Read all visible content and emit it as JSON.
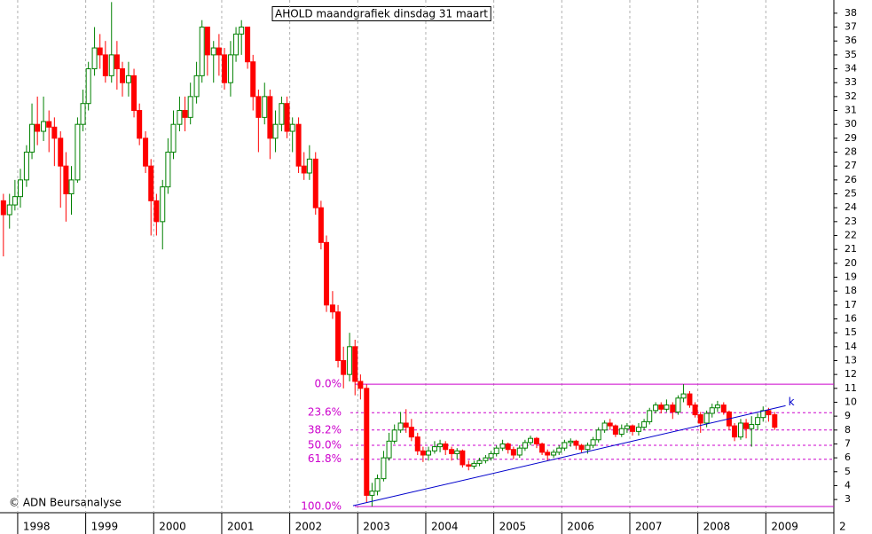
{
  "chart_data": {
    "type": "candlestick",
    "title": "AHOLD maandgrafiek dinsdag 31 maart",
    "copyright": "© ADN Beursanalyse",
    "up_color": "#008000",
    "down_color": "#ff0000",
    "grid": true,
    "xlim": [
      1997.74,
      2010
    ],
    "ylim": [
      2.05,
      38.95
    ],
    "xticks": [
      1998,
      1999,
      2000,
      2001,
      2002,
      2003,
      2004,
      2005,
      2006,
      2007,
      2008,
      2009,
      {
        "value": 2010,
        "label": "2"
      }
    ],
    "yticks": [
      3,
      4,
      5,
      6,
      7,
      8,
      9,
      10,
      11,
      12,
      13,
      14,
      15,
      16,
      17,
      18,
      19,
      20,
      21,
      22,
      23,
      24,
      25,
      26,
      27,
      28,
      29,
      30,
      31,
      32,
      33,
      34,
      35,
      36,
      37,
      38
    ],
    "x": [
      1997.79,
      1997.88,
      1997.96,
      1998.04,
      1998.13,
      1998.21,
      1998.29,
      1998.38,
      1998.46,
      1998.54,
      1998.63,
      1998.71,
      1998.79,
      1998.88,
      1998.96,
      1999.04,
      1999.13,
      1999.21,
      1999.29,
      1999.38,
      1999.46,
      1999.54,
      1999.63,
      1999.71,
      1999.79,
      1999.88,
      1999.96,
      2000.04,
      2000.13,
      2000.21,
      2000.29,
      2000.38,
      2000.46,
      2000.54,
      2000.63,
      2000.71,
      2000.79,
      2000.88,
      2000.96,
      2001.04,
      2001.13,
      2001.21,
      2001.29,
      2001.38,
      2001.46,
      2001.54,
      2001.63,
      2001.71,
      2001.79,
      2001.88,
      2001.96,
      2002.04,
      2002.13,
      2002.21,
      2002.29,
      2002.38,
      2002.46,
      2002.54,
      2002.63,
      2002.71,
      2002.79,
      2002.88,
      2002.96,
      2003.04,
      2003.13,
      2003.21,
      2003.29,
      2003.38,
      2003.46,
      2003.54,
      2003.63,
      2003.71,
      2003.79,
      2003.88,
      2003.96,
      2004.04,
      2004.13,
      2004.21,
      2004.29,
      2004.38,
      2004.46,
      2004.54,
      2004.63,
      2004.71,
      2004.79,
      2004.88,
      2004.96,
      2005.04,
      2005.13,
      2005.21,
      2005.29,
      2005.38,
      2005.46,
      2005.54,
      2005.63,
      2005.71,
      2005.79,
      2005.88,
      2005.96,
      2006.04,
      2006.13,
      2006.21,
      2006.29,
      2006.38,
      2006.46,
      2006.54,
      2006.63,
      2006.71,
      2006.79,
      2006.88,
      2006.96,
      2007.04,
      2007.13,
      2007.21,
      2007.29,
      2007.38,
      2007.46,
      2007.54,
      2007.63,
      2007.71,
      2007.79,
      2007.88,
      2007.96,
      2008.04,
      2008.13,
      2008.21,
      2008.29,
      2008.38,
      2008.46,
      2008.54,
      2008.63,
      2008.71,
      2008.79,
      2008.88,
      2008.96,
      2009.04,
      2009.13
    ],
    "open": [
      24.5,
      23.5,
      24.2,
      24.8,
      26,
      28,
      30,
      29.5,
      30.2,
      29.8,
      29,
      27,
      25,
      26,
      30,
      31.5,
      34,
      35.5,
      35,
      33.5,
      35,
      34,
      33,
      33.5,
      31,
      29,
      27,
      24.5,
      23,
      25.5,
      28,
      30,
      31,
      30.5,
      32,
      33.5,
      37,
      35,
      35.5,
      35,
      33,
      35,
      36.5,
      37,
      34.5,
      32,
      30.5,
      32,
      29,
      30,
      31.5,
      29.5,
      30,
      27,
      26.5,
      27.5,
      24,
      21.5,
      17,
      16.5,
      13,
      12,
      14,
      11.5,
      11,
      3.3,
      3.6,
      4.5,
      6,
      7.2,
      8,
      8.5,
      8.2,
      7.5,
      6.5,
      6.2,
      6.5,
      6.8,
      7,
      6.6,
      6.3,
      6.5,
      5.5,
      5.4,
      5.6,
      5.8,
      6,
      6.3,
      6.7,
      7,
      6.6,
      6.2,
      6.7,
      7.1,
      7.4,
      7,
      6.4,
      6.2,
      6.4,
      6.7,
      7.1,
      7.2,
      6.9,
      6.6,
      6.9,
      7.3,
      8,
      8.5,
      8.3,
      7.7,
      8.1,
      8.3,
      7.9,
      8.2,
      8.6,
      9.4,
      9.8,
      9.5,
      9.8,
      9.3,
      10.3,
      10.6,
      9.8,
      9.1,
      8.5,
      9.2,
      9.6,
      9.8,
      9.3,
      8.3,
      7.5,
      8.5,
      8.1,
      8.4,
      8.9,
      9.4,
      9.1
    ],
    "high": [
      25,
      25,
      26,
      26.8,
      28.5,
      31.5,
      32,
      32,
      31,
      30.5,
      29.5,
      28,
      27,
      30.5,
      32.5,
      34.5,
      37,
      36.5,
      36,
      38.8,
      36,
      34.5,
      34.5,
      34,
      31.5,
      29.5,
      27.5,
      25,
      26,
      29,
      31,
      32,
      32,
      33,
      34.5,
      37.5,
      37,
      36,
      36.5,
      35.5,
      36,
      37,
      37.5,
      37,
      35,
      32.5,
      33,
      32.5,
      31,
      32,
      32,
      30.5,
      30.5,
      28,
      28.5,
      28,
      24.5,
      22,
      18,
      17,
      14,
      15,
      14.5,
      12,
      11.3,
      4.2,
      4.8,
      6.5,
      7.8,
      8.4,
      9.3,
      9.5,
      8.8,
      7.8,
      6.8,
      6.8,
      7.2,
      7.3,
      7.2,
      6.8,
      6.7,
      6.6,
      5.8,
      5.8,
      6,
      6.2,
      6.5,
      6.9,
      7.3,
      7.1,
      6.8,
      6.9,
      7.3,
      7.6,
      7.5,
      7.1,
      6.6,
      6.6,
      6.9,
      7.3,
      7.4,
      7.3,
      7,
      7.1,
      7.5,
      8.2,
      8.7,
      8.8,
      8.4,
      8.4,
      8.5,
      8.4,
      8.5,
      8.8,
      9.6,
      10,
      10,
      10.2,
      10,
      10.5,
      11.3,
      10.8,
      10,
      9.3,
      9.4,
      9.9,
      10.1,
      10,
      9.4,
      8.5,
      8.8,
      8.8,
      9,
      9.2,
      9.7,
      9.6,
      9.3
    ],
    "low": [
      20.5,
      22.5,
      23.8,
      24,
      25.5,
      27.5,
      28.5,
      28.8,
      28,
      27,
      24,
      23,
      23.5,
      25.8,
      29.5,
      31,
      33.5,
      34,
      33,
      33,
      32.5,
      32,
      32,
      30.5,
      28.5,
      26.5,
      22,
      22,
      21,
      25,
      27.5,
      29.5,
      29.5,
      30,
      31.5,
      33,
      33.5,
      33,
      33.5,
      32.5,
      32,
      34.5,
      35,
      34,
      31,
      28,
      30,
      27.5,
      28,
      29.5,
      29,
      28,
      26.5,
      26,
      26,
      23.5,
      21,
      16.5,
      16,
      12.5,
      11,
      11.5,
      10.5,
      10.2,
      2.8,
      2.5,
      3.3,
      4.3,
      5.8,
      7,
      7.8,
      7.8,
      7.2,
      6.2,
      5.7,
      5.8,
      6.3,
      6.4,
      6.2,
      5.8,
      5.9,
      5.3,
      5.1,
      5.2,
      5.4,
      5.6,
      5.8,
      6.1,
      6.5,
      6.3,
      5.9,
      6,
      6.5,
      6.9,
      6.7,
      6.2,
      5.8,
      6,
      6.2,
      6.5,
      6.8,
      6.6,
      6.4,
      6.3,
      6.7,
      7.1,
      7.8,
      8,
      7.5,
      7.5,
      7.8,
      7.6,
      7.6,
      8,
      8.4,
      9.2,
      9.2,
      9.3,
      8.8,
      9.1,
      10,
      9.6,
      8.9,
      7.8,
      8.2,
      8.9,
      9.3,
      9.1,
      8,
      7.2,
      7.3,
      7.4,
      6.8,
      8,
      8.6,
      8.6,
      8
    ],
    "close": [
      23.5,
      24.2,
      24.8,
      26,
      28,
      30,
      29.5,
      30.2,
      29.8,
      29,
      27,
      25,
      26,
      30,
      31.5,
      34,
      35.5,
      35,
      33.5,
      35,
      34,
      33,
      33.5,
      31,
      29,
      27,
      24.5,
      23,
      25.5,
      28,
      30,
      31,
      30.5,
      32,
      33.5,
      37,
      35,
      35.5,
      35,
      33,
      35,
      36.5,
      37,
      34.5,
      32,
      30.5,
      32,
      29,
      30,
      31.5,
      29.5,
      30,
      27,
      26.5,
      27.5,
      24,
      21.5,
      17,
      16.5,
      13,
      12,
      14,
      11.5,
      11,
      3.3,
      3.6,
      4.5,
      6,
      7.2,
      8,
      8.5,
      8.2,
      7.5,
      6.5,
      6.2,
      6.5,
      6.8,
      7,
      6.6,
      6.3,
      6.5,
      5.5,
      5.4,
      5.6,
      5.8,
      6,
      6.3,
      6.7,
      7,
      6.6,
      6.2,
      6.7,
      7.1,
      7.4,
      7,
      6.4,
      6.2,
      6.4,
      6.7,
      7.1,
      7.2,
      6.9,
      6.6,
      6.9,
      7.3,
      8,
      8.5,
      8.3,
      7.7,
      8.1,
      8.3,
      7.9,
      8.2,
      8.6,
      9.4,
      9.8,
      9.5,
      9.8,
      9.3,
      10.3,
      10.6,
      9.8,
      9.1,
      8.5,
      9.2,
      9.6,
      9.8,
      9.3,
      8.3,
      7.5,
      8.5,
      8.1,
      8.4,
      8.9,
      9.4,
      9.1,
      8.2
    ],
    "fib_color": "#cc00cc",
    "fib_levels": [
      {
        "value": 11.3,
        "label": "0.0%"
      },
      {
        "value": 9.25,
        "label": "23.6%"
      },
      {
        "value": 8.0,
        "label": "38.2%"
      },
      {
        "value": 6.9,
        "label": "50.0%"
      },
      {
        "value": 5.9,
        "label": "61.8%"
      },
      {
        "value": 2.5,
        "label": "100.0%"
      }
    ],
    "trendline": {
      "color": "#0000cc",
      "label": "k",
      "x": [
        2002.93,
        2009.29
      ],
      "y": [
        2.55,
        9.75
      ]
    }
  }
}
